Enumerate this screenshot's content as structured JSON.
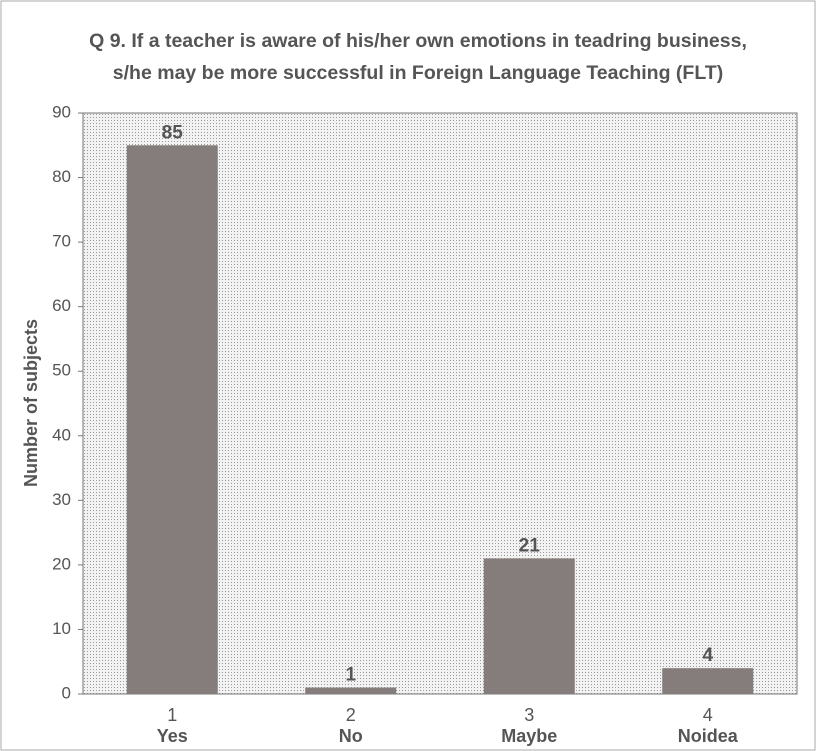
{
  "chart_data": {
    "type": "bar",
    "title": [
      "Q 9. If a teacher is aware of his/her own emotions in teadring business,",
      "s/he may be more successful in Foreign Language Teaching (FLT)"
    ],
    "y_label": "Number of subjects",
    "categories": [
      "1",
      "2",
      "3",
      "4"
    ],
    "category_names": [
      "Yes",
      "No",
      "Maybe",
      "Noidea"
    ],
    "values": [
      85,
      1,
      21,
      4
    ],
    "color": "#857d7b",
    "ylim": [
      0,
      90
    ],
    "yticks": [
      0,
      10,
      20,
      30,
      40,
      50,
      60,
      70,
      80,
      90
    ]
  }
}
